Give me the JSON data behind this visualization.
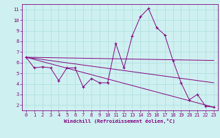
{
  "xlabel": "Windchill (Refroidissement éolien,°C)",
  "background_color": "#cff0f0",
  "line_color": "#800080",
  "grid_color": "#aadddd",
  "axis_color": "#800080",
  "xlim": [
    -0.5,
    23.5
  ],
  "ylim": [
    1.5,
    11.5
  ],
  "yticks": [
    2,
    3,
    4,
    5,
    6,
    7,
    8,
    9,
    10,
    11
  ],
  "xticks": [
    0,
    1,
    2,
    3,
    4,
    5,
    6,
    7,
    8,
    9,
    10,
    11,
    12,
    13,
    14,
    15,
    16,
    17,
    18,
    19,
    20,
    21,
    22,
    23
  ],
  "series": [
    {
      "x": [
        0,
        1,
        2,
        3,
        4,
        5,
        6,
        7,
        8,
        9,
        10,
        11,
        12,
        13,
        14,
        15,
        16,
        17,
        18,
        19,
        20,
        21,
        22,
        23
      ],
      "y": [
        6.5,
        5.5,
        5.6,
        5.5,
        4.3,
        5.5,
        5.5,
        3.7,
        4.5,
        4.1,
        4.1,
        7.8,
        5.5,
        8.5,
        10.3,
        11.1,
        9.3,
        8.6,
        6.2,
        4.1,
        2.5,
        3.0,
        1.9,
        1.8
      ]
    },
    {
      "x": [
        0,
        23
      ],
      "y": [
        6.5,
        6.2
      ]
    },
    {
      "x": [
        0,
        23
      ],
      "y": [
        6.5,
        4.1
      ]
    },
    {
      "x": [
        0,
        23
      ],
      "y": [
        6.5,
        1.8
      ]
    }
  ]
}
